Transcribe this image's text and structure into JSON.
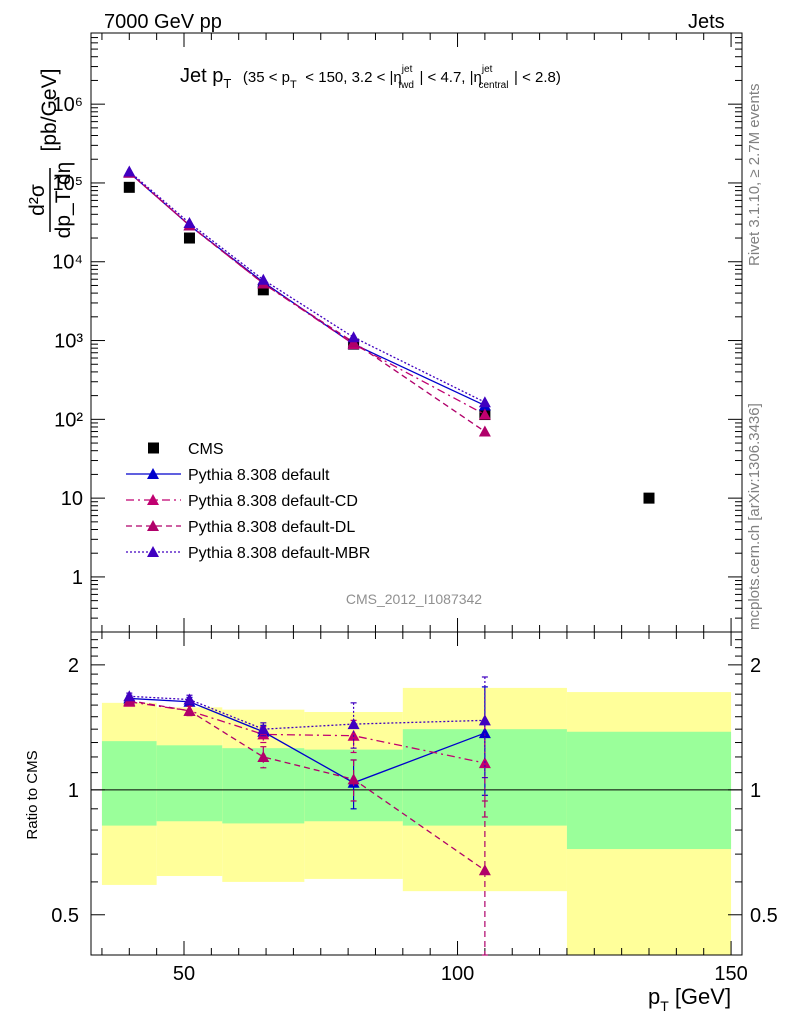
{
  "header": {
    "energy_label": "7000 GeV pp",
    "process_label": "Jets"
  },
  "side_labels": {
    "rivet": "Rivet 3.1.10, ≥ 2.7M events",
    "mcplots": "mcplots.cern.ch [arXiv:1306.3436]"
  },
  "chart_data": [
    {
      "type": "scatter",
      "panel": "main",
      "title": "Jet p_T (35 < p_T < 150, 3.2 < |η^jet_fwd| < 4.7, |η^jet_central| < 2.8)",
      "title_parts": {
        "main": "Jet p",
        "main_sub": "T",
        "range_open": "(35 < p",
        "range_sub": "T",
        "range_mid": "< 150, 3.2 < |η",
        "fwd_sup": "jet",
        "fwd_sub": "fwd",
        "range_mid2": "| < 4.7, |η",
        "cen_sup": "jet",
        "cen_sub": "central",
        "range_close": "| < 2.8)"
      },
      "ylabel": "d²σ/dp_T dη [pb/GeV]",
      "ylabel_parts": {
        "num": "d²σ",
        "den": "dp_T dη",
        "unit": "[pb/GeV]"
      },
      "yscale": "log",
      "ylim": [
        0.2,
        8000000
      ],
      "xlim": [
        33,
        152
      ],
      "y_ticks": [
        {
          "value": 1,
          "label": "1"
        },
        {
          "value": 10,
          "label": "10"
        },
        {
          "value": 100,
          "label": "10²"
        },
        {
          "value": 1000,
          "label": "10³"
        },
        {
          "value": 10000,
          "label": "10⁴"
        },
        {
          "value": 100000,
          "label": "10⁵"
        },
        {
          "value": 1000000,
          "label": "10⁶"
        }
      ],
      "watermark": "CMS_2012_I1087342",
      "legend": {
        "placement": "lower-left"
      },
      "series": [
        {
          "name": "CMS",
          "style": "square",
          "color": "#000000",
          "x": [
            40,
            51,
            64.5,
            81,
            105,
            135
          ],
          "y": [
            88000,
            20000,
            4400,
            900,
            115,
            10
          ]
        },
        {
          "name": "Pythia 8.308 default",
          "style": "solid",
          "color": "#0000cc",
          "x": [
            40,
            51,
            64.5,
            81,
            105
          ],
          "y": [
            135000,
            29000,
            5500,
            900,
            150
          ],
          "err": [
            0,
            0,
            0,
            0,
            0
          ]
        },
        {
          "name": "Pythia 8.308 default-CD",
          "style": "dashdot",
          "color": "#c00070",
          "x": [
            40,
            51,
            64.5,
            81,
            105
          ],
          "y": [
            135000,
            29000,
            5300,
            900,
            115
          ],
          "err": [
            0,
            0,
            0,
            0,
            0
          ]
        },
        {
          "name": "Pythia 8.308 default-DL",
          "style": "dashed",
          "color": "#b0006a",
          "x": [
            40,
            51,
            64.5,
            81,
            105
          ],
          "y": [
            135000,
            29000,
            5300,
            950,
            70
          ],
          "err": [
            0,
            0,
            0,
            0,
            0
          ]
        },
        {
          "name": "Pythia 8.308 default-MBR",
          "style": "dotted",
          "color": "#4000c0",
          "x": [
            40,
            51,
            64.5,
            81,
            105
          ],
          "y": [
            140000,
            31000,
            5900,
            1100,
            165
          ],
          "err": [
            0,
            0,
            0,
            0,
            0
          ]
        }
      ]
    },
    {
      "type": "scatter",
      "panel": "ratio",
      "ylabel": "Ratio to CMS",
      "xlabel": "p_T [GeV]",
      "xlabel_parts": {
        "main": "p",
        "sub": "T",
        "unit": "[GeV]"
      },
      "yscale": "log",
      "ylim": [
        0.4,
        2.4
      ],
      "xlim": [
        33,
        152
      ],
      "y_ticks": [
        {
          "value": 0.5,
          "label": "0.5"
        },
        {
          "value": 1,
          "label": "1"
        },
        {
          "value": 2,
          "label": "2"
        }
      ],
      "x_ticks": [
        {
          "value": 50,
          "label": "50"
        },
        {
          "value": 100,
          "label": "100"
        },
        {
          "value": 150,
          "label": "150"
        }
      ],
      "bands": [
        {
          "x0": 35,
          "x1": 45,
          "y_lo": 0.59,
          "y_hi": 1.62,
          "inner_lo": 0.82,
          "inner_hi": 1.31
        },
        {
          "x0": 45,
          "x1": 57,
          "y_lo": 0.62,
          "y_hi": 1.58,
          "inner_lo": 0.84,
          "inner_hi": 1.28
        },
        {
          "x0": 57,
          "x1": 72,
          "y_lo": 0.6,
          "y_hi": 1.56,
          "inner_lo": 0.83,
          "inner_hi": 1.26
        },
        {
          "x0": 72,
          "x1": 90,
          "y_lo": 0.61,
          "y_hi": 1.54,
          "inner_lo": 0.84,
          "inner_hi": 1.25
        },
        {
          "x0": 90,
          "x1": 120,
          "y_lo": 0.57,
          "y_hi": 1.76,
          "inner_lo": 0.82,
          "inner_hi": 1.4
        },
        {
          "x0": 120,
          "x1": 150,
          "y_lo": 0.4,
          "y_hi": 1.72,
          "inner_lo": 0.72,
          "inner_hi": 1.38
        }
      ],
      "series": [
        {
          "name": "Pythia 8.308 default",
          "style": "solid",
          "color": "#0000cc",
          "x": [
            40,
            51,
            64.5,
            81,
            105
          ],
          "y": [
            1.66,
            1.63,
            1.38,
            1.04,
            1.37
          ],
          "err": [
            0.03,
            0.04,
            0.05,
            0.14,
            0.4
          ]
        },
        {
          "name": "Pythia 8.308 default-CD",
          "style": "dashdot",
          "color": "#c00070",
          "x": [
            40,
            51,
            64.5,
            81,
            105
          ],
          "y": [
            1.63,
            1.55,
            1.36,
            1.35,
            1.16
          ],
          "err": [
            0.03,
            0.04,
            0.06,
            0.12,
            0.3
          ]
        },
        {
          "name": "Pythia 8.308 default-DL",
          "style": "dashed",
          "color": "#b0006a",
          "x": [
            40,
            51,
            64.5,
            81,
            105
          ],
          "y": [
            1.64,
            1.55,
            1.2,
            1.06,
            0.64
          ],
          "err": [
            0.03,
            0.04,
            0.07,
            0.12,
            0.3
          ]
        },
        {
          "name": "Pythia 8.308 default-MBR",
          "style": "dotted",
          "color": "#4000c0",
          "x": [
            40,
            51,
            64.5,
            81,
            105
          ],
          "y": [
            1.68,
            1.65,
            1.4,
            1.44,
            1.47
          ],
          "err": [
            0.03,
            0.04,
            0.05,
            0.18,
            0.4
          ]
        }
      ]
    }
  ]
}
